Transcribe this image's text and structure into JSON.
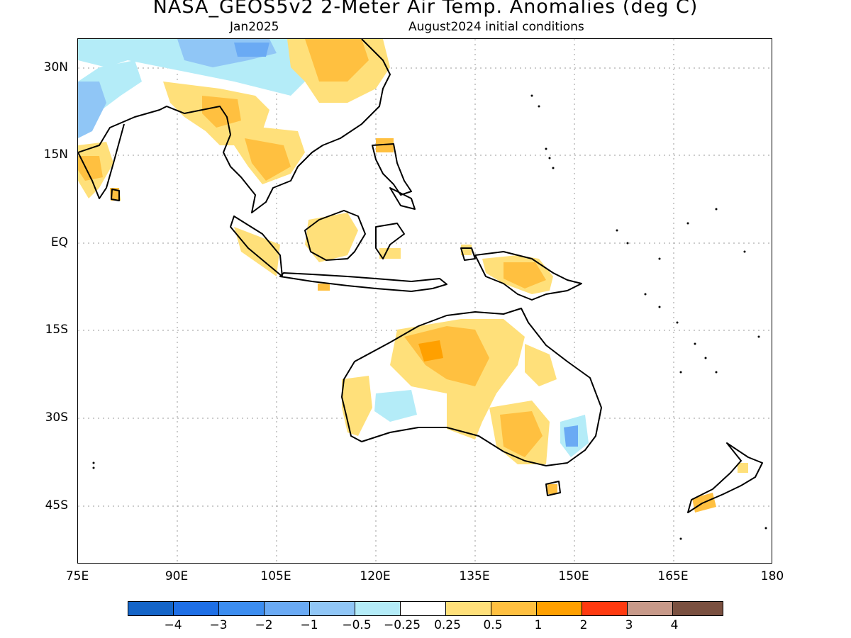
{
  "title": "NASA_GEOS5v2 2-Meter Air Temp. Anomalies (deg C)",
  "subtitle_left": "Jan2025",
  "subtitle_right": "August2024 initial conditions",
  "lat_labels": [
    "30N",
    "15N",
    "EQ",
    "15S",
    "30S",
    "45S"
  ],
  "lon_labels": [
    "75E",
    "90E",
    "105E",
    "120E",
    "135E",
    "150E",
    "165E",
    "180"
  ],
  "colorbar": {
    "labels": [
      "−4",
      "−3",
      "−2",
      "−1",
      "−0.5",
      "−0.25",
      "0.25",
      "0.5",
      "1",
      "2",
      "3",
      "4"
    ],
    "colors": [
      "#1565c8",
      "#1e6fe6",
      "#3c8df0",
      "#6aaaf4",
      "#90c6f6",
      "#b4ecf8",
      "#ffffff",
      "#ffe07a",
      "#ffc040",
      "#ffa000",
      "#ff3a10",
      "#c89a8a",
      "#7a5040"
    ]
  }
}
